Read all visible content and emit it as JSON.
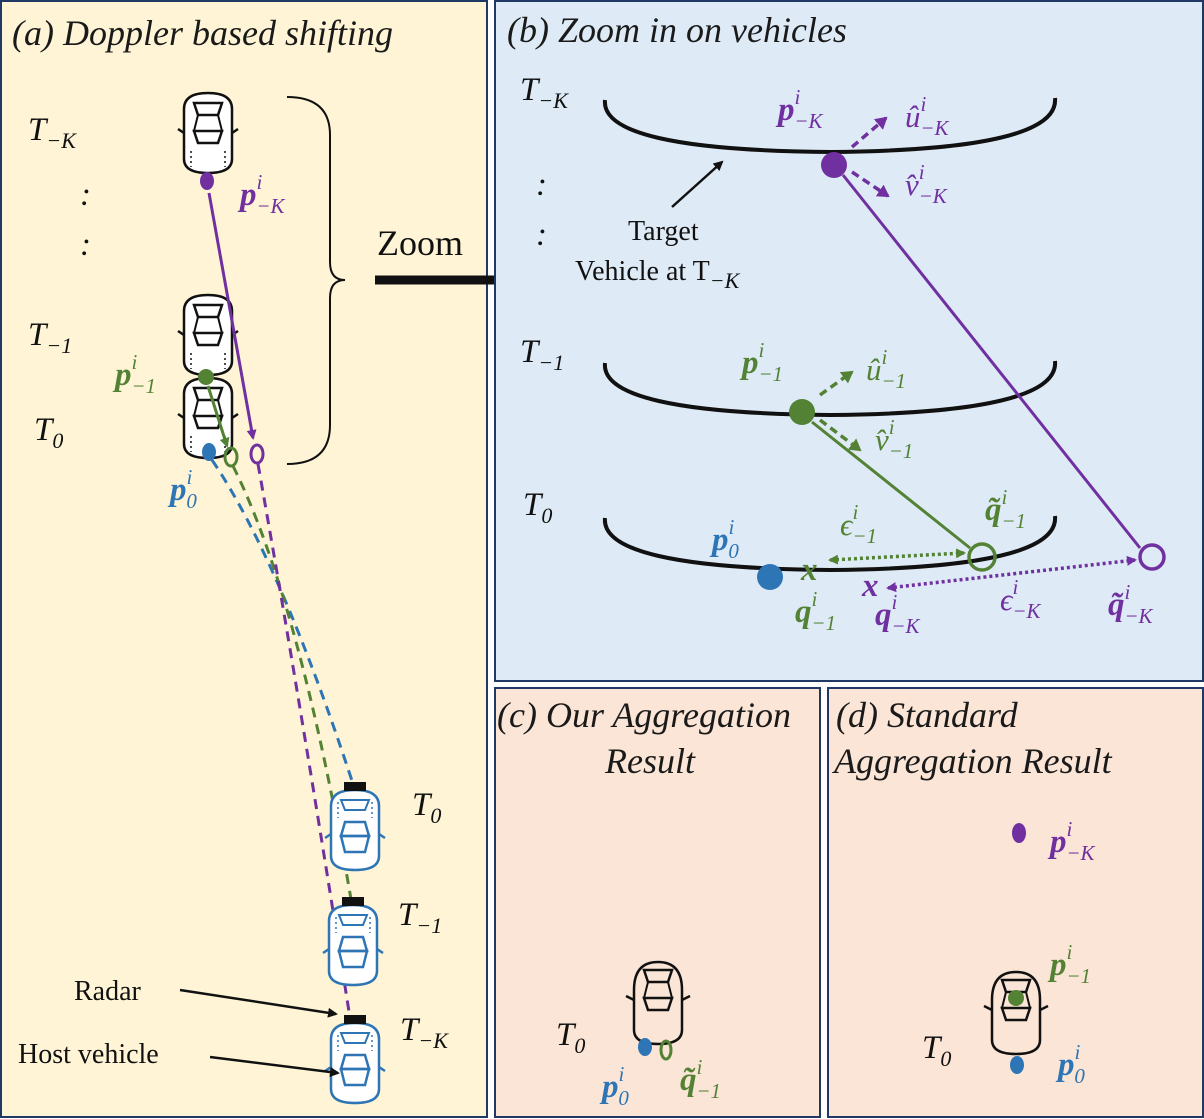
{
  "colors": {
    "purple": "#7030a0",
    "green": "#548235",
    "blue": "#2e75b6",
    "panel_a_bg": "#fff5d6",
    "panel_b_bg": "#deebf7",
    "panel_cd_bg": "#fbe5d6",
    "border": "#1f3864"
  },
  "panel_a": {
    "title": "(a) Doppler based shifting",
    "t_labels": {
      "t_minus_k": "T",
      "k_sub": "−K",
      "t_minus_1": "T",
      "one_sub": "−1",
      "t_0": "T",
      "zero_sub": "0"
    },
    "dots": ":",
    "zoom_label": "Zoom",
    "radar_label": "Radar",
    "host_label": "Host vehicle",
    "host_t_labels": {
      "t0": "T",
      "t0_sub": "0",
      "t1": "T",
      "t1_sub": "−1",
      "tk": "T",
      "tk_sub": "−K"
    }
  },
  "panel_b": {
    "title": "(b) Zoom in on vehicles",
    "target_line1": "Target",
    "target_line2": "Vehicle at T",
    "target_sub": "−K"
  },
  "panel_c": {
    "title_line1": "(c) Our Aggregation",
    "title_line2": "Result",
    "t_label": "T",
    "t_sub": "0"
  },
  "panel_d": {
    "title_line1": "(d) Standard",
    "title_line2": "Aggregation Result",
    "t_label": "T",
    "t_sub": "0"
  },
  "symbols": {
    "p": "p",
    "q": "q",
    "q_tilde": "q̃",
    "u_hat": "û",
    "v_hat": "v̂",
    "eps": "ϵ",
    "sup_i": "i",
    "sub_minus_k": "−K",
    "sub_minus_1": "−1",
    "sub_0": "0",
    "x_mark": "x"
  }
}
